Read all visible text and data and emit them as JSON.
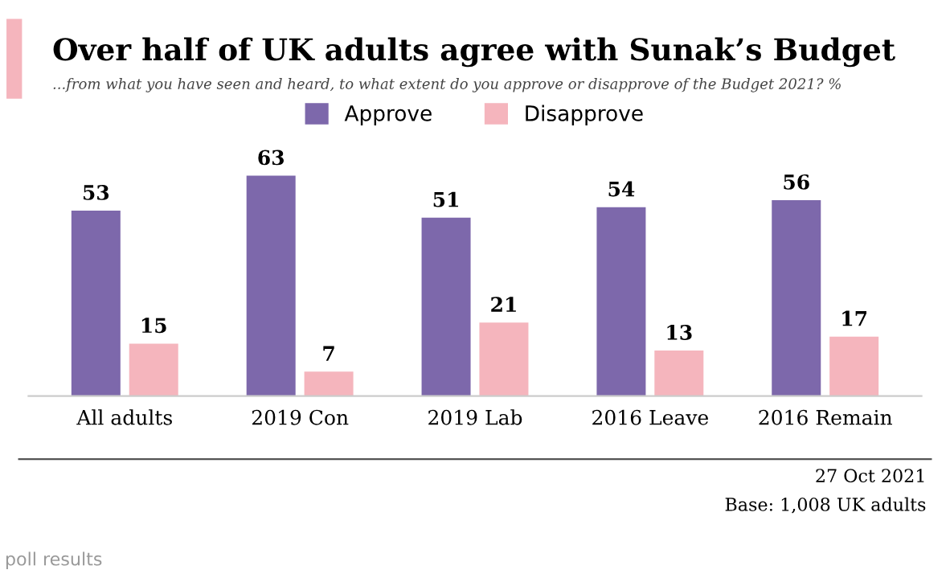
{
  "chart_data": {
    "type": "bar",
    "title": "Over half of UK adults agree with Sunak’s Budget",
    "subtitle": "...from what you have seen and heard, to what extent do you approve or disapprove of the Budget 2021? %",
    "categories": [
      "All adults",
      "2019 Con",
      "2019 Lab",
      "2016 Leave",
      "2016 Remain"
    ],
    "series": [
      {
        "name": "Approve",
        "color": "#7d68ab",
        "values": [
          53,
          63,
          51,
          54,
          56
        ]
      },
      {
        "name": "Disapprove",
        "color": "#f5b5bd",
        "values": [
          15,
          7,
          21,
          13,
          17
        ]
      }
    ],
    "data_labels": true,
    "legend": "top",
    "grid": false,
    "annotations": [
      "27 Oct 2021",
      "Base: 1,008 UK adults",
      "poll results"
    ]
  }
}
